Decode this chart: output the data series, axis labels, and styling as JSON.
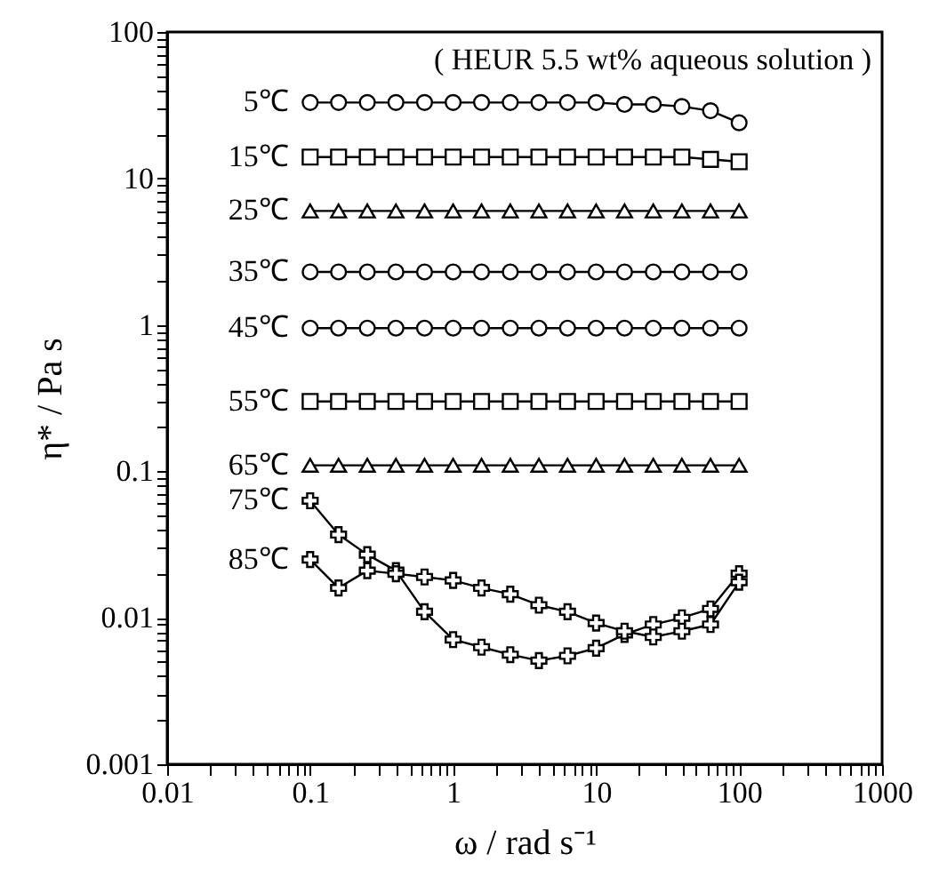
{
  "chart_data": {
    "type": "line",
    "xlabel": "ω / rad s⁻¹",
    "ylabel": "η* / Pa s",
    "log": "xy",
    "grid": false,
    "legend": "left",
    "annotations": [
      "( HEUR  5.5 wt% aqueous solution )"
    ],
    "x": [
      0.1,
      0.158,
      0.251,
      0.398,
      0.631,
      1,
      1.58,
      2.51,
      3.98,
      6.31,
      10,
      15.8,
      25.1,
      39.8,
      63.1,
      100
    ],
    "xlim": [
      0.01,
      1000
    ],
    "ylim": [
      0.001,
      100
    ],
    "xticks": [
      0.01,
      {
        "value": 0.02,
        "label": null
      },
      {
        "value": 0.03,
        "label": null
      },
      {
        "value": 0.04,
        "label": null
      },
      {
        "value": 0.05,
        "label": null
      },
      {
        "value": 0.06,
        "label": null
      },
      {
        "value": 0.07,
        "label": null
      },
      {
        "value": 0.08,
        "label": null
      },
      {
        "value": 0.09,
        "label": null
      },
      0.1,
      {
        "value": 0.2,
        "label": null
      },
      {
        "value": 0.3,
        "label": null
      },
      {
        "value": 0.4,
        "label": null
      },
      {
        "value": 0.5,
        "label": null
      },
      {
        "value": 0.6,
        "label": null
      },
      {
        "value": 0.7,
        "label": null
      },
      {
        "value": 0.8,
        "label": null
      },
      {
        "value": 0.9,
        "label": null
      },
      1,
      {
        "value": 2,
        "label": null
      },
      {
        "value": 3,
        "label": null
      },
      {
        "value": 4,
        "label": null
      },
      {
        "value": 5,
        "label": null
      },
      {
        "value": 6,
        "label": null
      },
      {
        "value": 7,
        "label": null
      },
      {
        "value": 8,
        "label": null
      },
      {
        "value": 9,
        "label": null
      },
      10,
      {
        "value": 20,
        "label": null
      },
      {
        "value": 30,
        "label": null
      },
      {
        "value": 40,
        "label": null
      },
      {
        "value": 50,
        "label": null
      },
      {
        "value": 60,
        "label": null
      },
      {
        "value": 70,
        "label": null
      },
      {
        "value": 80,
        "label": null
      },
      {
        "value": 90,
        "label": null
      },
      100,
      {
        "value": 200,
        "label": null
      },
      {
        "value": 300,
        "label": null
      },
      {
        "value": 400,
        "label": null
      },
      {
        "value": 500,
        "label": null
      },
      {
        "value": 600,
        "label": null
      },
      {
        "value": 700,
        "label": null
      },
      {
        "value": 800,
        "label": null
      },
      {
        "value": 900,
        "label": null
      },
      1000
    ],
    "yticks": [
      0.001,
      {
        "value": 0.002,
        "label": null
      },
      {
        "value": 0.003,
        "label": null
      },
      {
        "value": 0.004,
        "label": null
      },
      {
        "value": 0.005,
        "label": null
      },
      {
        "value": 0.006,
        "label": null
      },
      {
        "value": 0.007,
        "label": null
      },
      {
        "value": 0.008,
        "label": null
      },
      {
        "value": 0.009,
        "label": null
      },
      0.01,
      {
        "value": 0.02,
        "label": null
      },
      {
        "value": 0.03,
        "label": null
      },
      {
        "value": 0.04,
        "label": null
      },
      {
        "value": 0.05,
        "label": null
      },
      {
        "value": 0.06,
        "label": null
      },
      {
        "value": 0.07,
        "label": null
      },
      {
        "value": 0.08,
        "label": null
      },
      {
        "value": 0.09,
        "label": null
      },
      0.1,
      {
        "value": 0.2,
        "label": null
      },
      {
        "value": 0.3,
        "label": null
      },
      {
        "value": 0.4,
        "label": null
      },
      {
        "value": 0.5,
        "label": null
      },
      {
        "value": 0.6,
        "label": null
      },
      {
        "value": 0.7,
        "label": null
      },
      {
        "value": 0.8,
        "label": null
      },
      {
        "value": 0.9,
        "label": null
      },
      1,
      {
        "value": 2,
        "label": null
      },
      {
        "value": 3,
        "label": null
      },
      {
        "value": 4,
        "label": null
      },
      {
        "value": 5,
        "label": null
      },
      {
        "value": 6,
        "label": null
      },
      {
        "value": 7,
        "label": null
      },
      {
        "value": 8,
        "label": null
      },
      {
        "value": 9,
        "label": null
      },
      10,
      {
        "value": 20,
        "label": null
      },
      {
        "value": 30,
        "label": null
      },
      {
        "value": 40,
        "label": null
      },
      {
        "value": 50,
        "label": null
      },
      {
        "value": 60,
        "label": null
      },
      {
        "value": 70,
        "label": null
      },
      {
        "value": 80,
        "label": null
      },
      {
        "value": 90,
        "label": null
      },
      100
    ],
    "series": [
      {
        "name": "5℃",
        "color": "#000000",
        "marker": "circle",
        "values": [
          33,
          33,
          33,
          33,
          33,
          33,
          33,
          33,
          33,
          33,
          33,
          32,
          32,
          31,
          29,
          24
        ]
      },
      {
        "name": "15℃",
        "color": "#000000",
        "marker": "square",
        "values": [
          14,
          14,
          14,
          14,
          14,
          14,
          14,
          14,
          14,
          14,
          14,
          14,
          14,
          14,
          13.5,
          13
        ]
      },
      {
        "name": "25℃",
        "color": "#000000",
        "marker": "triangle",
        "values": [
          6,
          6,
          6,
          6,
          6,
          6,
          6,
          6,
          6,
          6,
          6,
          6,
          6,
          6,
          6,
          6
        ]
      },
      {
        "name": "35℃",
        "color": "#000000",
        "marker": "circle",
        "values": [
          2.3,
          2.3,
          2.3,
          2.3,
          2.3,
          2.3,
          2.3,
          2.3,
          2.3,
          2.3,
          2.3,
          2.3,
          2.3,
          2.3,
          2.3,
          2.3
        ]
      },
      {
        "name": "45℃",
        "color": "#000000",
        "marker": "circle",
        "values": [
          0.95,
          0.95,
          0.95,
          0.95,
          0.95,
          0.95,
          0.95,
          0.95,
          0.95,
          0.95,
          0.95,
          0.95,
          0.95,
          0.95,
          0.95,
          0.95
        ]
      },
      {
        "name": "55℃",
        "color": "#000000",
        "marker": "square",
        "values": [
          0.3,
          0.3,
          0.3,
          0.3,
          0.3,
          0.3,
          0.3,
          0.3,
          0.3,
          0.3,
          0.3,
          0.3,
          0.3,
          0.3,
          0.3,
          0.3
        ]
      },
      {
        "name": "65℃",
        "color": "#000000",
        "marker": "triangle",
        "values": [
          0.11,
          0.11,
          0.11,
          0.11,
          0.11,
          0.11,
          0.11,
          0.11,
          0.11,
          0.11,
          0.11,
          0.11,
          0.11,
          0.11,
          0.11,
          0.11
        ]
      },
      {
        "name": "75℃",
        "color": "#000000",
        "marker": "cross",
        "values": [
          0.063,
          0.037,
          0.027,
          0.021,
          0.011,
          0.0071,
          0.0063,
          0.0056,
          0.0051,
          0.0055,
          0.0062,
          0.0077,
          0.009,
          0.01,
          0.0115,
          0.02
        ]
      },
      {
        "name": "85℃",
        "color": "#000000",
        "marker": "cross",
        "values": [
          0.025,
          0.016,
          0.021,
          0.02,
          0.019,
          0.018,
          0.016,
          0.0145,
          0.0122,
          0.011,
          0.0092,
          0.0081,
          0.0074,
          0.0081,
          0.009,
          0.0175
        ]
      }
    ]
  }
}
